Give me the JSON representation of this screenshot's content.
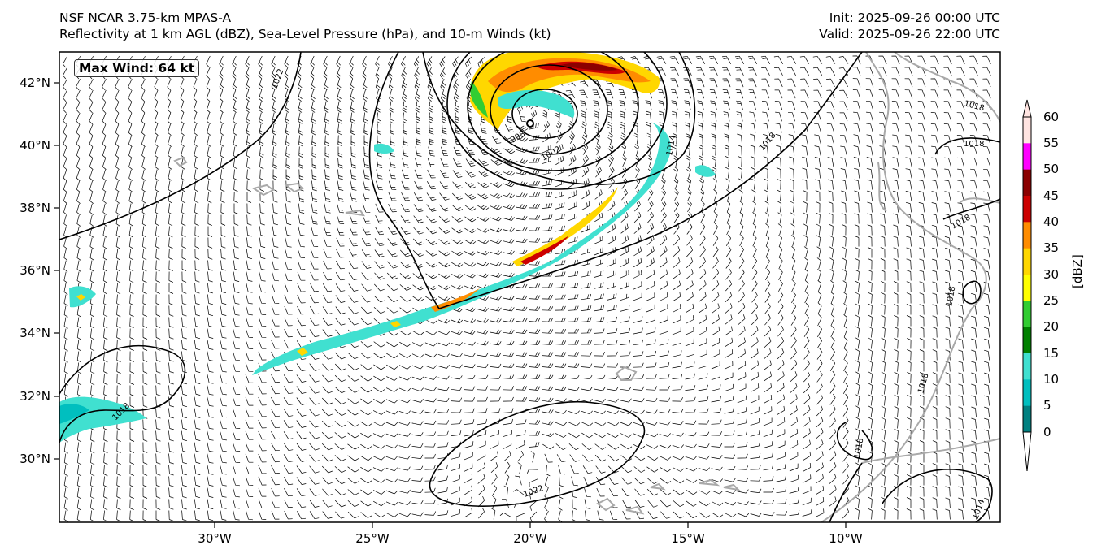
{
  "header": {
    "model": "NSF NCAR 3.75-km MPAS-A",
    "fields": "Reflectivity at 1 km AGL (dBZ), Sea-Level Pressure (hPa), and 10-m Winds (kt)",
    "init": "Init: 2025-09-26 00:00 UTC",
    "valid": "Valid: 2025-09-26 22:00 UTC"
  },
  "annotation": {
    "max_wind": "Max Wind: 64 kt"
  },
  "axes": {
    "lat_labels": [
      "42°N",
      "40°N",
      "38°N",
      "36°N",
      "34°N",
      "32°N",
      "30°N"
    ],
    "lon_labels": [
      "30°W",
      "25°W",
      "20°W",
      "15°W",
      "10°W"
    ]
  },
  "isobar_labels": [
    "1022",
    "1014",
    "1002",
    "998",
    "1018",
    "1018",
    "1018",
    "1018",
    "1018",
    "1018",
    "1014",
    "1018",
    "1022",
    "1018"
  ],
  "colorbar": {
    "title": "[dBZ]",
    "ticks": [
      "60",
      "55",
      "50",
      "45",
      "40",
      "35",
      "30",
      "25",
      "20",
      "15",
      "10",
      "5",
      "0"
    ],
    "colors": [
      "#ffe4e1",
      "#ff00ff",
      "#8b0000",
      "#cc0000",
      "#ff8c00",
      "#ffd700",
      "#ffff00",
      "#32cd32",
      "#008000",
      "#40e0d0",
      "#00bfbf",
      "#008080"
    ]
  },
  "regions": {
    "low_center": "Low pressure center near 40.5°N 20.5°W",
    "high_south": "High pressure near 30°N 19°W"
  }
}
